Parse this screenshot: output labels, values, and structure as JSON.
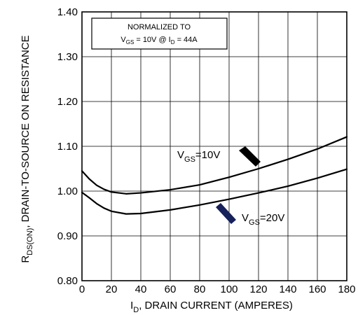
{
  "chart_data": {
    "type": "line",
    "xlabel": {
      "main": "I",
      "sub": "D",
      "rest": ", DRAIN CURRENT (AMPERES)"
    },
    "ylabel": {
      "main": "R",
      "sub": "DS(ON)",
      "rest": ", DRAIN-TO-SOURCE ON RESISTANCE"
    },
    "xlim": [
      0,
      180
    ],
    "ylim": [
      0.8,
      1.4
    ],
    "xticks": [
      "0",
      "20",
      "40",
      "60",
      "80",
      "100",
      "120",
      "140",
      "160",
      "180"
    ],
    "yticks": [
      "0.80",
      "0.90",
      "1.00",
      "1.10",
      "1.20",
      "1.30",
      "1.40"
    ],
    "grid": true,
    "note": {
      "line1": "NORMALIZED TO",
      "v_main": "V",
      "v_sub": "GS",
      "v_rest": " = 10V  @  I",
      "i_sub": "D",
      "i_rest": " = 44A"
    },
    "series": [
      {
        "label_main": "V",
        "label_sub": "GS",
        "label_rest": "=10V",
        "color": "#000000",
        "x": [
          0,
          5,
          10,
          15,
          20,
          30,
          40,
          60,
          80,
          100,
          120,
          140,
          160,
          180
        ],
        "y": [
          1.045,
          1.027,
          1.013,
          1.004,
          0.998,
          0.994,
          0.996,
          1.003,
          1.014,
          1.031,
          1.05,
          1.071,
          1.094,
          1.121
        ]
      },
      {
        "label_main": "V",
        "label_sub": "GS",
        "label_rest": "=20V",
        "color": "#000000",
        "x": [
          0,
          5,
          10,
          15,
          20,
          30,
          40,
          60,
          80,
          100,
          120,
          140,
          160,
          180
        ],
        "y": [
          0.997,
          0.985,
          0.972,
          0.962,
          0.955,
          0.949,
          0.95,
          0.958,
          0.969,
          0.982,
          0.996,
          1.011,
          1.029,
          1.049
        ]
      }
    ],
    "arrows": {
      "vgs10_color": "#000000",
      "vgs20_color": "#16205a"
    }
  }
}
